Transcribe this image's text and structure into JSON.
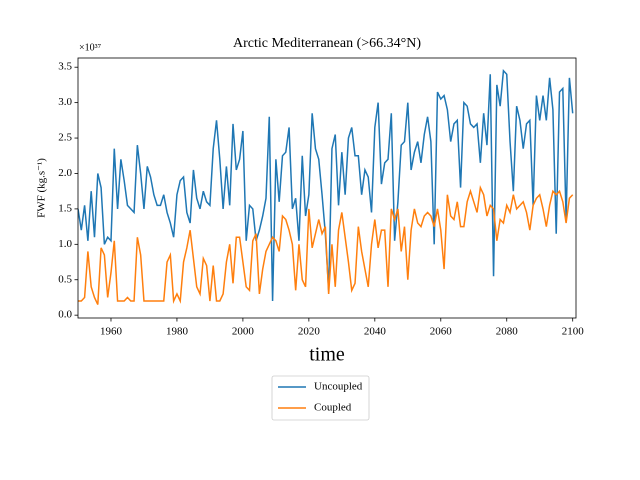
{
  "chart_data": {
    "type": "line",
    "title": "Arctic Mediterranean (>66.34°N)",
    "xlabel": "time",
    "ylabel": "FWF (kg.s⁻¹)",
    "y_offset_label": "×10³⁷",
    "xlim": [
      1950,
      2101
    ],
    "ylim": [
      -0.04,
      3.63
    ],
    "xticks": [
      1960,
      1980,
      2000,
      2020,
      2040,
      2060,
      2080,
      2100
    ],
    "yticks": [
      {
        "value": 0,
        "label": "0.0"
      },
      0.5,
      {
        "value": 1,
        "label": "1.0"
      },
      1.5,
      {
        "value": 2,
        "label": "2.0"
      },
      2.5,
      {
        "value": 3,
        "label": "3.0"
      },
      3.5
    ],
    "legend": "lower center outside",
    "x": [
      1950,
      1951,
      1952,
      1953,
      1954,
      1955,
      1956,
      1957,
      1958,
      1959,
      1960,
      1961,
      1962,
      1963,
      1964,
      1965,
      1966,
      1967,
      1968,
      1969,
      1970,
      1971,
      1972,
      1973,
      1974,
      1975,
      1976,
      1977,
      1978,
      1979,
      1980,
      1981,
      1982,
      1983,
      1984,
      1985,
      1986,
      1987,
      1988,
      1989,
      1990,
      1991,
      1992,
      1993,
      1994,
      1995,
      1996,
      1997,
      1998,
      1999,
      2000,
      2001,
      2002,
      2003,
      2004,
      2005,
      2006,
      2007,
      2008,
      2009,
      2010,
      2011,
      2012,
      2013,
      2014,
      2015,
      2016,
      2017,
      2018,
      2019,
      2020,
      2021,
      2022,
      2023,
      2024,
      2025,
      2026,
      2027,
      2028,
      2029,
      2030,
      2031,
      2032,
      2033,
      2034,
      2035,
      2036,
      2037,
      2038,
      2039,
      2040,
      2041,
      2042,
      2043,
      2044,
      2045,
      2046,
      2047,
      2048,
      2049,
      2050,
      2051,
      2052,
      2053,
      2054,
      2055,
      2056,
      2057,
      2058,
      2059,
      2060,
      2061,
      2062,
      2063,
      2064,
      2065,
      2066,
      2067,
      2068,
      2069,
      2070,
      2071,
      2072,
      2073,
      2074,
      2075,
      2076,
      2077,
      2078,
      2079,
      2080,
      2081,
      2082,
      2083,
      2084,
      2085,
      2086,
      2087,
      2088,
      2089,
      2090,
      2091,
      2092,
      2093,
      2094,
      2095,
      2096,
      2097,
      2098,
      2099,
      2100
    ],
    "series": [
      {
        "name": "Uncoupled",
        "color": "#1f77b4",
        "values": [
          1.5,
          1.2,
          1.55,
          1.05,
          1.75,
          1.1,
          2.0,
          1.8,
          1.0,
          1.1,
          1.05,
          2.35,
          1.5,
          2.2,
          1.9,
          1.55,
          1.5,
          1.45,
          2.4,
          2.0,
          1.5,
          2.1,
          1.95,
          1.7,
          1.55,
          1.55,
          1.7,
          1.45,
          1.3,
          1.1,
          1.7,
          1.9,
          1.95,
          1.45,
          1.3,
          2.05,
          1.65,
          1.5,
          1.75,
          1.6,
          1.55,
          2.35,
          2.75,
          2.2,
          1.5,
          2.1,
          1.55,
          2.7,
          2.05,
          2.2,
          2.6,
          1.05,
          1.55,
          1.5,
          1.05,
          1.2,
          1.4,
          1.65,
          2.8,
          0.2,
          2.2,
          1.6,
          2.25,
          2.3,
          2.65,
          1.5,
          1.65,
          1.05,
          2.25,
          1.4,
          1.7,
          2.85,
          2.35,
          2.2,
          1.7,
          1.15,
          0.35,
          2.35,
          2.55,
          1.55,
          2.3,
          1.7,
          2.5,
          2.65,
          2.25,
          2.25,
          1.7,
          2.05,
          1.95,
          1.45,
          2.65,
          3.0,
          1.85,
          2.15,
          2.2,
          2.85,
          1.05,
          1.6,
          2.4,
          2.45,
          3.0,
          2.05,
          2.3,
          2.45,
          2.15,
          2.55,
          2.8,
          2.45,
          1.0,
          3.15,
          3.05,
          3.1,
          2.9,
          2.45,
          2.7,
          2.75,
          1.8,
          3.0,
          2.95,
          2.7,
          2.65,
          2.7,
          2.15,
          2.85,
          2.4,
          3.4,
          0.55,
          3.25,
          2.95,
          3.45,
          3.4,
          2.45,
          1.75,
          2.95,
          2.75,
          2.35,
          2.7,
          2.75,
          1.55,
          3.1,
          2.75,
          3.1,
          2.75,
          3.35,
          2.9,
          1.15,
          3.15,
          3.2,
          1.35,
          3.35,
          2.85
        ]
      },
      {
        "name": "Coupled",
        "color": "#ff7f0e",
        "values": [
          0.2,
          0.2,
          0.25,
          0.9,
          0.4,
          0.25,
          0.15,
          0.95,
          0.85,
          0.25,
          0.6,
          1.05,
          0.2,
          0.2,
          0.2,
          0.25,
          0.2,
          0.2,
          1.1,
          0.85,
          0.2,
          0.2,
          0.2,
          0.2,
          0.2,
          0.2,
          0.2,
          0.75,
          0.85,
          0.2,
          0.3,
          0.2,
          0.75,
          0.95,
          1.2,
          0.8,
          0.4,
          0.3,
          0.8,
          0.7,
          0.2,
          0.7,
          0.2,
          0.2,
          0.3,
          0.75,
          1.0,
          0.45,
          1.1,
          1.1,
          0.75,
          0.4,
          0.35,
          1.05,
          1.15,
          0.3,
          0.65,
          0.9,
          1.0,
          1.1,
          1.05,
          0.9,
          1.4,
          1.35,
          1.2,
          1.0,
          0.35,
          1.0,
          0.5,
          0.4,
          1.5,
          0.95,
          1.15,
          1.35,
          1.15,
          1.25,
          0.3,
          1.0,
          0.4,
          1.2,
          1.45,
          1.1,
          0.75,
          0.35,
          0.45,
          1.25,
          0.9,
          0.65,
          0.4,
          1.0,
          1.35,
          0.95,
          1.2,
          1.2,
          0.4,
          1.5,
          1.35,
          1.5,
          0.9,
          1.25,
          0.5,
          1.2,
          1.5,
          1.3,
          1.25,
          1.4,
          1.45,
          1.4,
          1.25,
          1.5,
          1.2,
          0.65,
          1.7,
          1.4,
          1.35,
          1.6,
          1.25,
          1.25,
          1.6,
          1.75,
          1.6,
          1.45,
          1.8,
          1.7,
          1.4,
          1.55,
          1.5,
          1.05,
          1.35,
          1.3,
          1.55,
          1.45,
          1.7,
          1.5,
          1.55,
          1.6,
          1.45,
          1.2,
          1.55,
          1.65,
          1.7,
          1.5,
          1.25,
          1.55,
          1.75,
          1.7,
          1.75,
          1.6,
          1.3,
          1.65,
          1.7
        ]
      }
    ]
  }
}
